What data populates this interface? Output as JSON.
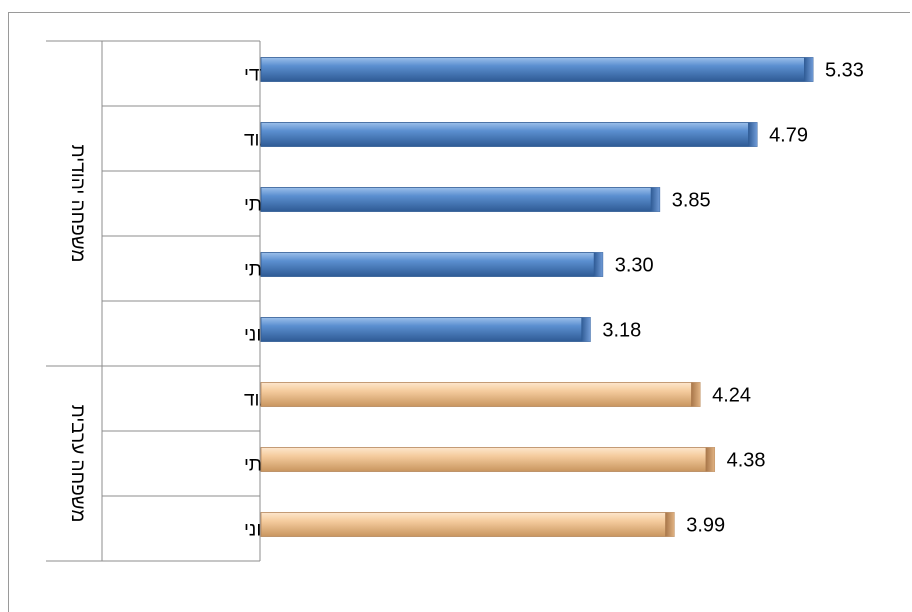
{
  "chart_data": {
    "type": "bar",
    "orientation": "horizontal",
    "groups": [
      {
        "name": "משפחה יהודית",
        "color": "#4f81bd",
        "categories": [
          "חרדי",
          "דתי מאוד",
          "דתי",
          "מסורתי",
          "חילוני"
        ],
        "values": [
          5.33,
          4.79,
          3.85,
          3.3,
          3.18
        ],
        "value_labels": [
          "5.33",
          "4.79",
          "3.85",
          "3.30",
          "3.18"
        ]
      },
      {
        "name": "משפחה ערבית",
        "color": "#f2c79a",
        "categories": [
          "דתי/דתי מאוד",
          "מסורתי",
          "חילוני"
        ],
        "values": [
          4.24,
          4.38,
          3.99
        ],
        "value_labels": [
          "4.24",
          "4.38",
          "3.99"
        ]
      }
    ],
    "xlim": [
      0,
      6
    ],
    "grid": false,
    "legend": "none"
  }
}
